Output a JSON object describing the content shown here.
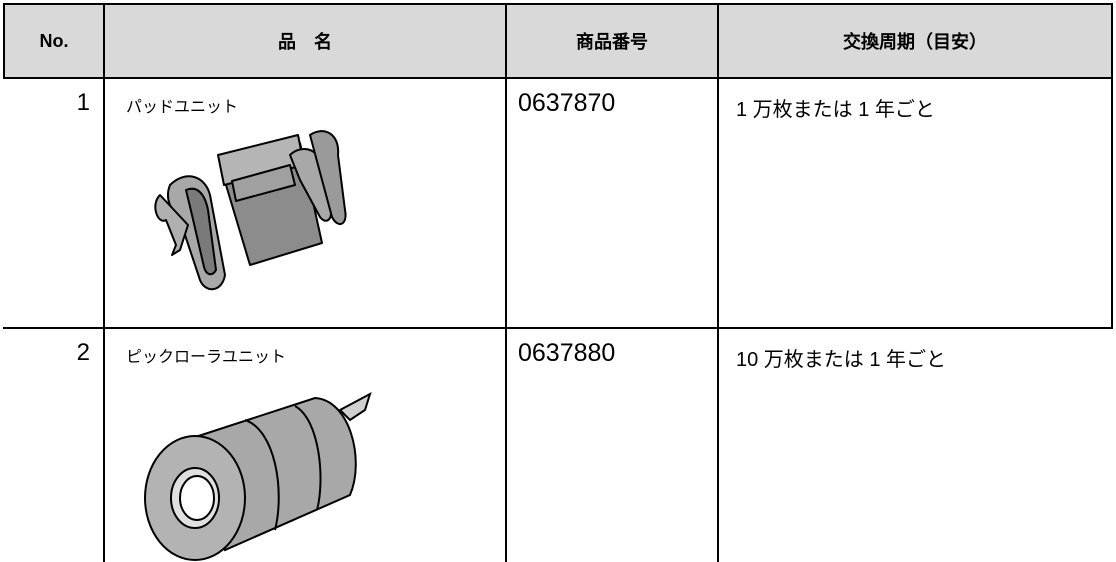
{
  "table": {
    "header": [
      "No.",
      "品　名",
      "商品番号",
      "交換周期（目安）"
    ],
    "rows": [
      [
        "1",
        "パッドユニット",
        "0637870",
        "1 万枚または 1 年ごと"
      ],
      [
        "2",
        "ピックローラユニット",
        "0637880",
        "10 万枚または 1 年ごと"
      ]
    ]
  }
}
